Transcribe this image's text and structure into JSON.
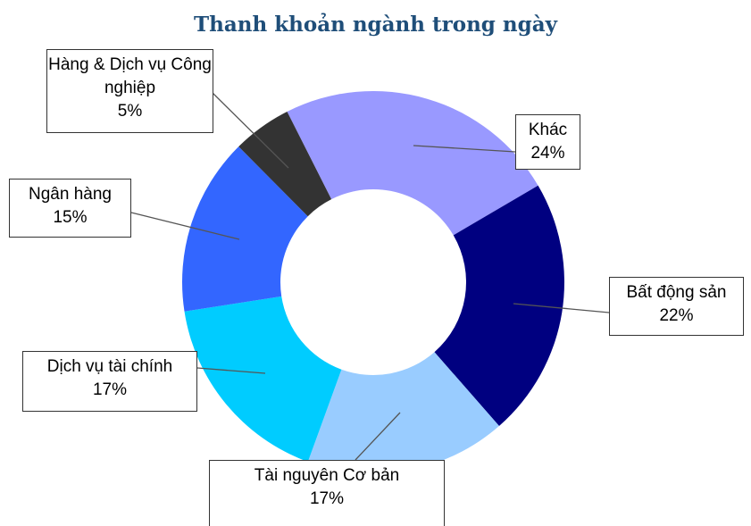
{
  "chart_data": {
    "type": "donut",
    "title": "Thanh khoản ngành trong ngày",
    "categories": [
      "Khác",
      "Bất động sản",
      "Tài nguyên Cơ bản",
      "Dịch vụ tài chính",
      "Ngân hàng",
      "Hàng & Dịch vụ Công nghiệp"
    ],
    "values": [
      24,
      22,
      17,
      17,
      15,
      5
    ],
    "value_labels": [
      "24%",
      "22%",
      "17%",
      "17%",
      "15%",
      "5%"
    ],
    "colors": [
      "#9999ff",
      "#000080",
      "#99ccff",
      "#00ccff",
      "#3366ff",
      "#333333"
    ]
  }
}
